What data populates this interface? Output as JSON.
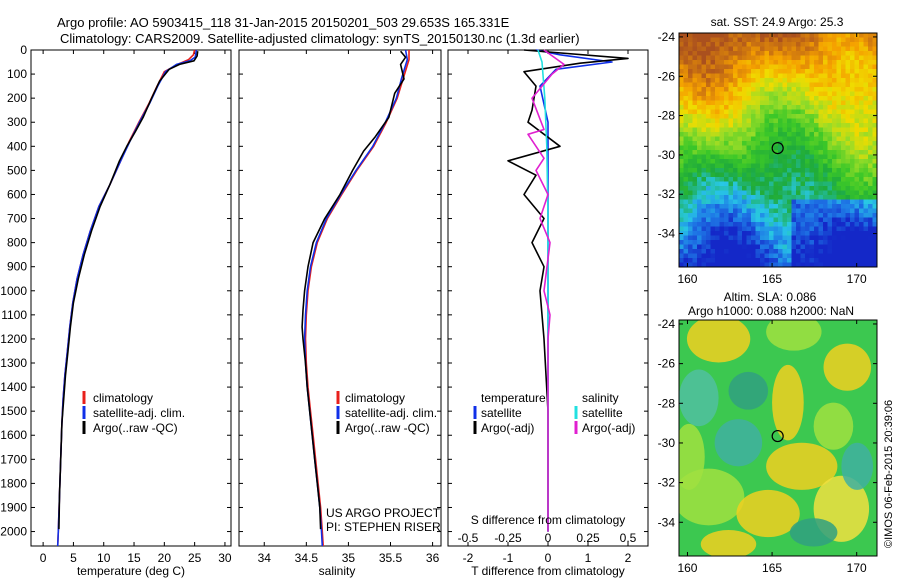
{
  "header": {
    "line1": "Argo profile: AO 5903415_118 31-Jan-2015 20150201_503 29.653S 165.331E",
    "line2": "Climatology: CARS2009. Satellite-adjusted climatology: synTS_20150130.nc (1.3d earlier)"
  },
  "colors": {
    "climatology": "#e8201c",
    "satellite": "#1030e8",
    "argo": "#000000",
    "sal_satellite": "#22e0e0",
    "sal_argo": "#e020d0",
    "marker": "#000000"
  },
  "project_credit": {
    "line1": "US ARGO PROJECT",
    "line2": "PI: STEPHEN RISER"
  },
  "timestamp": "©IMOS 06-Feb-2015 20:39:06",
  "chart_data": [
    {
      "type": "line",
      "panel": "temperature",
      "xlabel": "temperature (deg C)",
      "ylabel": "",
      "xlim": [
        -2,
        31
      ],
      "ylim": [
        2060,
        0
      ],
      "xticks": [
        0,
        5,
        10,
        15,
        20,
        25,
        30
      ],
      "yticks": [
        0,
        100,
        200,
        300,
        400,
        500,
        600,
        700,
        800,
        900,
        1000,
        1100,
        1200,
        1300,
        1400,
        1500,
        1600,
        1700,
        1800,
        1900,
        2000
      ],
      "legend": [
        "climatology",
        "satellite-adj. clim.",
        "Argo(..raw -QC)"
      ],
      "legend_position": "bottom-center",
      "series": [
        {
          "name": "climatology",
          "color": "#e8201c",
          "points": [
            [
              25.0,
              0
            ],
            [
              24.8,
              20
            ],
            [
              24.0,
              40
            ],
            [
              22.2,
              60
            ],
            [
              20.0,
              90
            ],
            [
              18.8,
              150
            ],
            [
              17.5,
              220
            ],
            [
              15.8,
              300
            ],
            [
              14.2,
              380
            ],
            [
              12.8,
              460
            ],
            [
              11.0,
              560
            ],
            [
              9.2,
              650
            ],
            [
              7.8,
              750
            ],
            [
              6.6,
              850
            ],
            [
              5.6,
              950
            ],
            [
              4.9,
              1050
            ],
            [
              4.4,
              1150
            ],
            [
              4.0,
              1250
            ],
            [
              3.6,
              1350
            ],
            [
              3.3,
              1450
            ],
            [
              3.1,
              1550
            ],
            [
              2.9,
              1700
            ],
            [
              2.7,
              1850
            ],
            [
              2.5,
              2000
            ],
            [
              2.4,
              2060
            ]
          ]
        },
        {
          "name": "satellite-adj. clim.",
          "color": "#1030e8",
          "points": [
            [
              25.3,
              0
            ],
            [
              25.1,
              30
            ],
            [
              24.2,
              45
            ],
            [
              22.0,
              60
            ],
            [
              20.2,
              90
            ],
            [
              18.9,
              150
            ],
            [
              17.6,
              220
            ],
            [
              15.9,
              300
            ],
            [
              14.3,
              380
            ],
            [
              12.8,
              460
            ],
            [
              11.0,
              560
            ],
            [
              9.2,
              650
            ],
            [
              7.8,
              750
            ],
            [
              6.6,
              850
            ],
            [
              5.6,
              950
            ],
            [
              4.9,
              1050
            ],
            [
              4.4,
              1150
            ],
            [
              4.0,
              1250
            ],
            [
              3.6,
              1350
            ],
            [
              3.3,
              1450
            ],
            [
              3.1,
              1550
            ],
            [
              2.9,
              1700
            ],
            [
              2.7,
              1850
            ],
            [
              2.5,
              2000
            ],
            [
              2.4,
              2060
            ]
          ]
        },
        {
          "name": "Argo(..raw -QC)",
          "color": "#000000",
          "points": [
            [
              25.5,
              5
            ],
            [
              25.4,
              25
            ],
            [
              24.9,
              45
            ],
            [
              22.5,
              60
            ],
            [
              20.8,
              80
            ],
            [
              19.2,
              130
            ],
            [
              17.9,
              200
            ],
            [
              16.5,
              280
            ],
            [
              15.2,
              340
            ],
            [
              13.8,
              400
            ],
            [
              12.6,
              460
            ],
            [
              11.0,
              560
            ],
            [
              9.4,
              650
            ],
            [
              8.0,
              750
            ],
            [
              6.8,
              850
            ],
            [
              5.8,
              950
            ],
            [
              5.0,
              1050
            ],
            [
              4.5,
              1150
            ],
            [
              4.1,
              1250
            ],
            [
              3.7,
              1350
            ],
            [
              3.4,
              1450
            ],
            [
              3.1,
              1550
            ],
            [
              2.9,
              1700
            ],
            [
              2.7,
              1850
            ],
            [
              2.6,
              1990
            ]
          ]
        }
      ]
    },
    {
      "type": "line",
      "panel": "salinity",
      "xlabel": "salinity",
      "ylabel": "",
      "xlim": [
        33.7,
        36.1
      ],
      "ylim": [
        2060,
        0
      ],
      "xticks": [
        34,
        34.5,
        35,
        35.5,
        36
      ],
      "legend": [
        "climatology",
        "satellite-adj. clim.",
        "Argo(..raw -QC)"
      ],
      "legend_position": "bottom-center",
      "series": [
        {
          "name": "climatology",
          "color": "#e8201c",
          "points": [
            [
              35.72,
              0
            ],
            [
              35.72,
              40
            ],
            [
              35.65,
              120
            ],
            [
              35.58,
              200
            ],
            [
              35.45,
              300
            ],
            [
              35.3,
              400
            ],
            [
              35.1,
              500
            ],
            [
              34.92,
              600
            ],
            [
              34.75,
              700
            ],
            [
              34.63,
              800
            ],
            [
              34.56,
              900
            ],
            [
              34.52,
              1000
            ],
            [
              34.5,
              1100
            ],
            [
              34.49,
              1200
            ],
            [
              34.5,
              1300
            ],
            [
              34.52,
              1400
            ],
            [
              34.55,
              1500
            ],
            [
              34.58,
              1600
            ],
            [
              34.61,
              1700
            ],
            [
              34.64,
              1800
            ],
            [
              34.67,
              1900
            ],
            [
              34.69,
              2000
            ],
            [
              34.7,
              2060
            ]
          ]
        },
        {
          "name": "satellite-adj. clim.",
          "color": "#1030e8",
          "points": [
            [
              35.68,
              0
            ],
            [
              35.7,
              40
            ],
            [
              35.63,
              120
            ],
            [
              35.57,
              200
            ],
            [
              35.44,
              300
            ],
            [
              35.29,
              400
            ],
            [
              35.09,
              500
            ],
            [
              34.91,
              600
            ],
            [
              34.74,
              700
            ],
            [
              34.62,
              800
            ],
            [
              34.55,
              900
            ],
            [
              34.51,
              1000
            ],
            [
              34.49,
              1100
            ],
            [
              34.48,
              1200
            ],
            [
              34.49,
              1300
            ],
            [
              34.51,
              1400
            ],
            [
              34.54,
              1500
            ],
            [
              34.57,
              1600
            ],
            [
              34.6,
              1700
            ],
            [
              34.63,
              1800
            ],
            [
              34.66,
              1900
            ],
            [
              34.68,
              2000
            ],
            [
              34.69,
              2060
            ]
          ]
        },
        {
          "name": "Argo(..raw -QC)",
          "color": "#000000",
          "points": [
            [
              35.62,
              5
            ],
            [
              35.68,
              30
            ],
            [
              35.62,
              60
            ],
            [
              35.66,
              120
            ],
            [
              35.55,
              180
            ],
            [
              35.48,
              280
            ],
            [
              35.32,
              360
            ],
            [
              35.18,
              420
            ],
            [
              35.05,
              500
            ],
            [
              34.9,
              600
            ],
            [
              34.72,
              700
            ],
            [
              34.58,
              800
            ],
            [
              34.52,
              900
            ],
            [
              34.48,
              1000
            ],
            [
              34.46,
              1080
            ],
            [
              34.45,
              1150
            ],
            [
              34.46,
              1200
            ],
            [
              34.49,
              1300
            ],
            [
              34.51,
              1400
            ],
            [
              34.54,
              1500
            ],
            [
              34.57,
              1600
            ],
            [
              34.6,
              1700
            ],
            [
              34.63,
              1800
            ],
            [
              34.66,
              1900
            ],
            [
              34.67,
              1990
            ]
          ]
        }
      ]
    },
    {
      "type": "line",
      "panel": "difference",
      "xlabel": "T difference from climatology",
      "xlabel_top": "S difference from climatology",
      "ylabel": "",
      "xlim": [
        -2.5,
        2.5
      ],
      "ylim": [
        2060,
        0
      ],
      "xticks": [
        -2,
        -1,
        0,
        1,
        2
      ],
      "xticks_top": [
        "-0.5",
        "-0.25",
        "0",
        "0.25",
        "0.5"
      ],
      "legend_temperature_title": "temperature",
      "legend_salinity_title": "salinity",
      "legend_entries": [
        "satellite",
        "Argo(-adj)",
        "satellite",
        "Argo(-adj)"
      ],
      "series": [
        {
          "name": "temperature satellite",
          "color": "#1030e8",
          "points": [
            [
              -0.3,
              0
            ],
            [
              0.3,
              20
            ],
            [
              1.6,
              50
            ],
            [
              0.2,
              80
            ],
            [
              -0.2,
              150
            ],
            [
              0.0,
              300
            ],
            [
              0.0,
              600
            ],
            [
              0.0,
              1000
            ],
            [
              0.0,
              1500
            ],
            [
              0.0,
              2000
            ]
          ]
        },
        {
          "name": "temperature Argo(-adj)",
          "color": "#000000",
          "points": [
            [
              -0.6,
              0
            ],
            [
              2.0,
              35
            ],
            [
              0.8,
              55
            ],
            [
              -0.6,
              90
            ],
            [
              -0.3,
              150
            ],
            [
              -0.4,
              250
            ],
            [
              -0.5,
              300
            ],
            [
              0.3,
              400
            ],
            [
              -1.0,
              460
            ],
            [
              -0.3,
              520
            ],
            [
              -0.6,
              600
            ],
            [
              -0.1,
              700
            ],
            [
              -0.4,
              800
            ],
            [
              -0.1,
              900
            ],
            [
              -0.2,
              1000
            ],
            [
              -0.1,
              1200
            ],
            [
              0.0,
              1500
            ],
            [
              0.0,
              2000
            ]
          ]
        },
        {
          "name": "salinity satellite",
          "color": "#22e0e0",
          "points": [
            [
              -0.25,
              0
            ],
            [
              -0.15,
              50
            ],
            [
              -0.08,
              200
            ],
            [
              -0.03,
              400
            ],
            [
              0.0,
              700
            ],
            [
              0.0,
              1000
            ],
            [
              0.0,
              2000
            ]
          ]
        },
        {
          "name": "salinity Argo(-adj)",
          "color": "#e020d0",
          "points": [
            [
              -0.1,
              0
            ],
            [
              0.4,
              60
            ],
            [
              0.1,
              100
            ],
            [
              -0.4,
              200
            ],
            [
              -0.1,
              330
            ],
            [
              -0.5,
              350
            ],
            [
              -0.1,
              450
            ],
            [
              -0.3,
              500
            ],
            [
              0.0,
              600
            ],
            [
              -0.2,
              700
            ],
            [
              0.05,
              800
            ],
            [
              -0.1,
              1000
            ],
            [
              0.05,
              1100
            ],
            [
              0.0,
              1200
            ],
            [
              0.0,
              1500
            ],
            [
              0.0,
              2000
            ]
          ]
        }
      ]
    },
    {
      "type": "heatmap",
      "panel": "sst_map",
      "title": "sat. SST: 24.9 Argo: 25.3",
      "xlim": [
        159.5,
        171.2
      ],
      "ylim": [
        -35.7,
        -23.8
      ],
      "xticks": [
        160,
        165,
        170
      ],
      "yticks": [
        -24,
        -26,
        -28,
        -30,
        -32,
        -34
      ],
      "marker": [
        165.331,
        -29.653
      ]
    },
    {
      "type": "heatmap",
      "panel": "sla_map",
      "title_line1": "Altim. SLA: 0.086",
      "title_line2": "Argo h1000: 0.088 h2000: NaN",
      "xlim": [
        159.5,
        171.2
      ],
      "ylim": [
        -35.7,
        -23.8
      ],
      "xticks": [
        160,
        165,
        170
      ],
      "yticks": [
        -24,
        -26,
        -28,
        -30,
        -32,
        -34
      ],
      "marker": [
        165.331,
        -29.653
      ]
    }
  ]
}
